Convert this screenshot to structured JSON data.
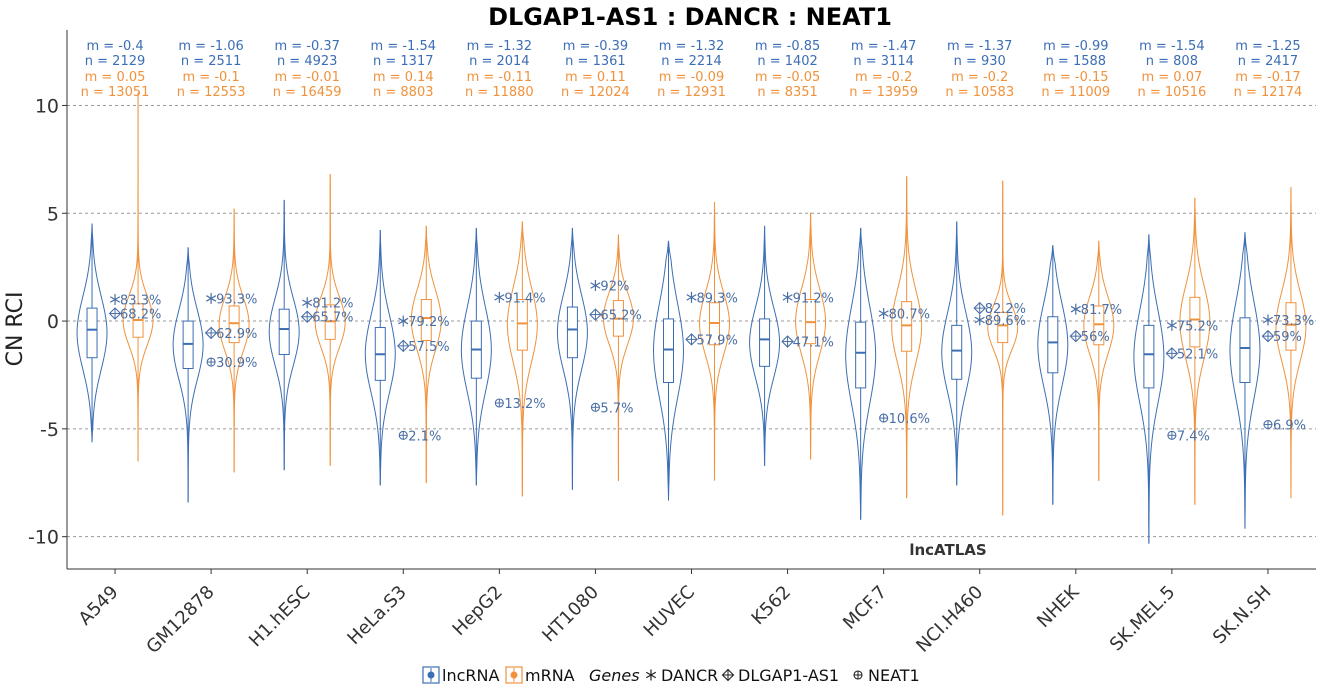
{
  "chart_data": {
    "type": "violin",
    "title": "DLGAP1-AS1 : DANCR : NEAT1",
    "ylabel": "CN RCI",
    "xlabel": "",
    "ylim": [
      -11.5,
      13.5
    ],
    "yticks": [
      -10,
      -5,
      0,
      5,
      10
    ],
    "ytick_labels": [
      "-10",
      "-5",
      "0",
      "5",
      "10"
    ],
    "grid": true,
    "watermark": "lncATLAS",
    "categories": [
      "A549",
      "GM12878",
      "H1.hESC",
      "HeLa.S3",
      "HepG2",
      "HT1080",
      "HUVEC",
      "K562",
      "MCF.7",
      "NCI.H460",
      "NHEK",
      "SK.MEL.5",
      "SK.N.SH"
    ],
    "colors": {
      "lncRNA": "#3c6eb4",
      "mRNA": "#f0923c",
      "pct": "#4a6fa5"
    },
    "series": [
      {
        "name": "lncRNA",
        "m_labels": [
          "m = -0.4",
          "m = -1.06",
          "m = -0.37",
          "m = -1.54",
          "m = -1.32",
          "m = -0.39",
          "m = -1.32",
          "m = -0.85",
          "m = -1.47",
          "m = -1.37",
          "m = -0.99",
          "m = -1.54",
          "m = -1.25"
        ],
        "n_labels": [
          "n = 2129",
          "n = 2511",
          "n = 4923",
          "n = 1317",
          "n = 2014",
          "n = 1361",
          "n = 2214",
          "n = 1402",
          "n = 3114",
          "n = 930",
          "n = 1588",
          "n = 808",
          "n = 2417"
        ],
        "median": [
          -0.4,
          -1.06,
          -0.37,
          -1.54,
          -1.32,
          -0.39,
          -1.32,
          -0.85,
          -1.47,
          -1.37,
          -0.99,
          -1.54,
          -1.25
        ],
        "q1": [
          -1.7,
          -2.2,
          -1.55,
          -2.75,
          -2.65,
          -1.7,
          -2.85,
          -2.1,
          -3.1,
          -2.7,
          -2.4,
          -3.1,
          -2.85
        ],
        "q3": [
          0.6,
          0.0,
          0.55,
          -0.3,
          0.0,
          0.65,
          0.1,
          0.1,
          -0.05,
          -0.2,
          0.2,
          -0.2,
          0.15
        ],
        "min": [
          -5.6,
          -8.4,
          -6.9,
          -7.6,
          -7.6,
          -7.8,
          -8.3,
          -6.7,
          -9.2,
          -7.6,
          -8.5,
          -10.3,
          -9.6
        ],
        "max": [
          4.5,
          3.4,
          5.6,
          4.2,
          4.3,
          4.3,
          3.7,
          4.4,
          4.3,
          4.6,
          3.5,
          4.0,
          4.1
        ]
      },
      {
        "name": "mRNA",
        "m_labels": [
          "m = 0.05",
          "m = -0.1",
          "m = -0.01",
          "m = 0.14",
          "m = -0.11",
          "m = 0.11",
          "m = -0.09",
          "m = -0.05",
          "m = -0.2",
          "m = -0.2",
          "m = -0.15",
          "m = 0.07",
          "m = -0.17"
        ],
        "n_labels": [
          "n = 13051",
          "n = 12553",
          "n = 16459",
          "n = 8803",
          "n = 11880",
          "n = 12024",
          "n = 12931",
          "n = 8351",
          "n = 13959",
          "n = 10583",
          "n = 11009",
          "n = 10516",
          "n = 12174"
        ],
        "median": [
          0.05,
          -0.1,
          -0.01,
          0.14,
          -0.11,
          0.11,
          -0.09,
          -0.05,
          -0.2,
          -0.2,
          -0.15,
          0.07,
          -0.17
        ],
        "q1": [
          -0.75,
          -1.0,
          -0.85,
          -0.9,
          -1.35,
          -0.7,
          -1.1,
          -1.05,
          -1.4,
          -1.0,
          -1.1,
          -1.2,
          -1.35
        ],
        "q3": [
          0.8,
          0.7,
          0.75,
          1.0,
          1.0,
          0.95,
          0.85,
          1.0,
          0.9,
          0.4,
          0.7,
          1.1,
          0.85
        ],
        "min": [
          -6.5,
          -7.0,
          -6.7,
          -7.5,
          -8.1,
          -7.4,
          -7.4,
          -6.4,
          -8.2,
          -9.0,
          -7.4,
          -8.5,
          -8.2
        ],
        "max": [
          10.6,
          5.2,
          6.8,
          4.4,
          4.6,
          4.0,
          5.5,
          5.0,
          6.7,
          6.5,
          3.7,
          5.7,
          6.2
        ]
      }
    ],
    "genes": [
      {
        "name": "DANCR",
        "symbol": "asterisk",
        "values": [
          1.0,
          1.05,
          0.85,
          0.0,
          1.1,
          1.65,
          1.1,
          1.1,
          0.35,
          0.05,
          0.55,
          -0.2,
          0.05
        ],
        "labels": [
          "83.3%",
          "93.3%",
          "81.2%",
          "79.2%",
          "91.4%",
          "92%",
          "89.3%",
          "91.2%",
          "80.7%",
          "89.6%",
          "81.7%",
          "75.2%",
          "73.3%"
        ]
      },
      {
        "name": "DLGAP1-AS1",
        "symbol": "diamond-plus",
        "values": [
          0.35,
          -0.55,
          0.2,
          -1.15,
          null,
          0.3,
          -0.85,
          -0.95,
          null,
          0.6,
          -0.7,
          -1.5,
          -0.7
        ],
        "labels": [
          "68.2%",
          "62.9%",
          "65.7%",
          "57.5%",
          "",
          "65.2%",
          "57.9%",
          "47.1%",
          "",
          "82.2%",
          "56%",
          "52.1%",
          "59%"
        ]
      },
      {
        "name": "NEAT1",
        "symbol": "circle-plus",
        "values": [
          null,
          -1.9,
          null,
          -5.3,
          -3.8,
          -4.0,
          null,
          null,
          -4.5,
          null,
          null,
          -5.3,
          -4.8
        ],
        "labels": [
          "",
          "30.9%",
          "",
          "2.1%",
          "13.2%",
          "5.7%",
          "",
          "",
          "10.6%",
          "",
          "",
          "7.4%",
          "6.9%"
        ]
      }
    ],
    "legend": {
      "fill_items": [
        "lncRNA",
        "mRNA"
      ],
      "genes_title": "Genes",
      "gene_items": [
        "DANCR",
        "DLGAP1-AS1",
        "NEAT1"
      ],
      "position": "bottom"
    }
  }
}
